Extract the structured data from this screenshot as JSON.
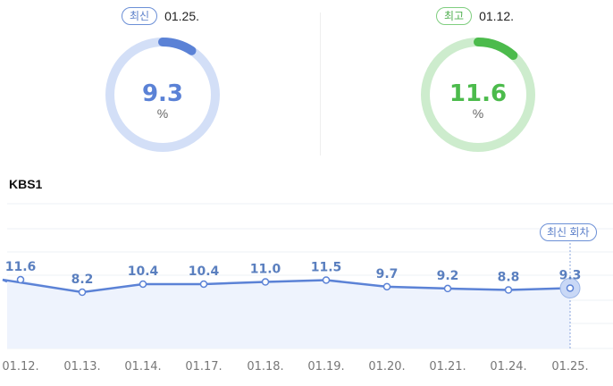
{
  "latest": {
    "badge": "최신",
    "date": "01.25.",
    "value": 9.3,
    "value_text": "9.3",
    "unit": "%",
    "color": "#5b82d6",
    "track_color": "#d3dff7"
  },
  "highest": {
    "badge": "최고",
    "date": "01.12.",
    "value": 11.6,
    "value_text": "11.6",
    "unit": "%",
    "color": "#4cbb4c",
    "track_color": "#cdeccd"
  },
  "series_title": "KBS1",
  "latest_marker_label": "최신 회차",
  "chart_data": {
    "type": "line",
    "categories": [
      "01.12.",
      "01.13.",
      "01.14.",
      "01.17.",
      "01.18.",
      "01.19.",
      "01.20.",
      "01.21.",
      "01.24.",
      "01.25."
    ],
    "values": [
      11.6,
      8.2,
      10.4,
      10.4,
      11.0,
      11.5,
      9.7,
      9.2,
      8.8,
      9.3
    ],
    "labels": [
      "11.6",
      "8.2",
      "10.4",
      "10.4",
      "11.0",
      "11.5",
      "9.7",
      "9.2",
      "8.8",
      "9.3"
    ],
    "title": "KBS1",
    "xlabel": "",
    "ylabel": "",
    "grid": true,
    "line_color": "#5b82d6",
    "fill_color": "#eef3fd"
  }
}
